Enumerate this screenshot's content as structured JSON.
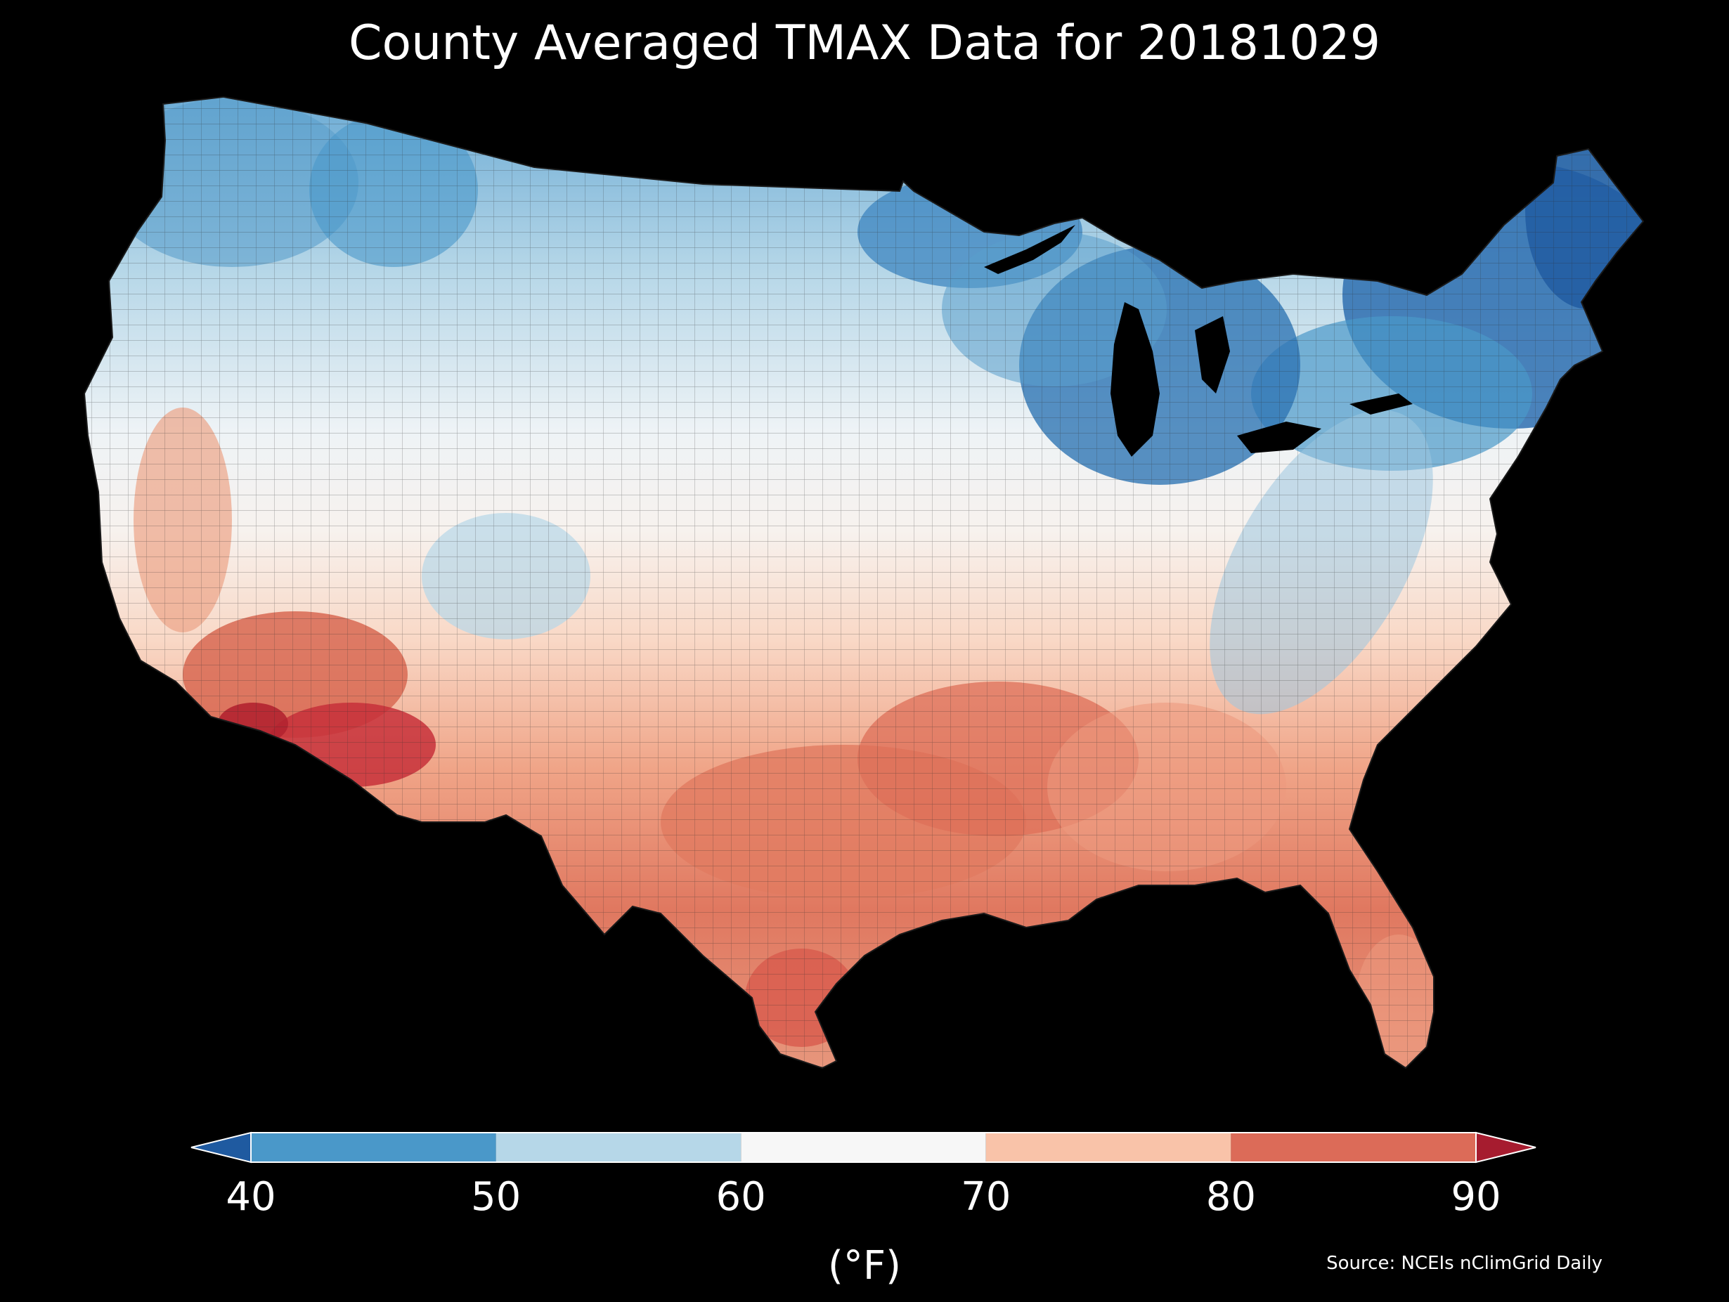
{
  "title": "County Averaged TMAX Data for 20181029",
  "colorbar": {
    "ticks": [
      "40",
      "50",
      "60",
      "70",
      "80",
      "90"
    ],
    "unit": "(°F)",
    "bins": [
      {
        "min": 40,
        "max": 50,
        "color": "#4a98c9"
      },
      {
        "min": 50,
        "max": 60,
        "color": "#b6d7e8"
      },
      {
        "min": 60,
        "max": 70,
        "color": "#f7f7f7"
      },
      {
        "min": 70,
        "max": 80,
        "color": "#f9c3a9"
      },
      {
        "min": 80,
        "max": 90,
        "color": "#dc6b58"
      }
    ],
    "under_color": "#1f5aa0",
    "over_color": "#a61c2f"
  },
  "source": "Source: NCEIs nClimGrid Daily",
  "map": {
    "region": "contiguous United States",
    "unit": "°F",
    "colors": {
      "cold": "#1f5aa0",
      "cool": "#4a98c9",
      "mild": "#b6d7e8",
      "neutral": "#f7f7f7",
      "warm": "#f9c3a9",
      "hot": "#dc6b58",
      "very_hot": "#a61c2f",
      "background": "#000000",
      "water": "#000000"
    }
  }
}
